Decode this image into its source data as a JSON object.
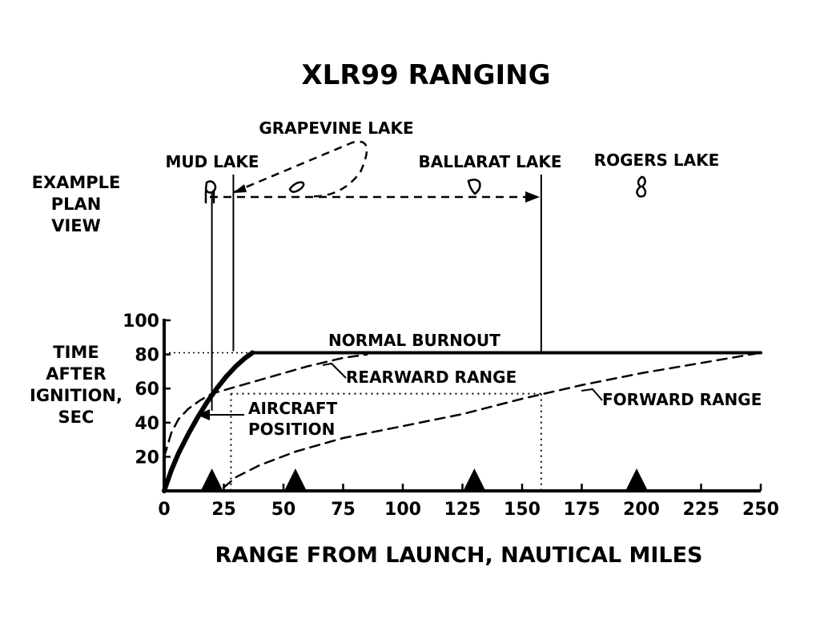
{
  "chart_data": {
    "type": "line",
    "title": "XLR99 RANGING",
    "xlabel": "RANGE FROM LAUNCH, NAUTICAL MILES",
    "ylabel": [
      "TIME",
      "AFTER",
      "IGNITION,",
      "SEC"
    ],
    "xlim": [
      0,
      250
    ],
    "ylim": [
      0,
      100
    ],
    "x_ticks": [
      "0",
      "25",
      "50",
      "75",
      "100",
      "125",
      "150",
      "175",
      "200",
      "225",
      "250"
    ],
    "y_ticks": [
      "20",
      "40",
      "60",
      "80",
      "100"
    ],
    "grid": false,
    "series": [
      {
        "name": "AIRCRAFT POSITION",
        "style": "solid-thick",
        "points": [
          [
            0,
            0
          ],
          [
            3,
            12
          ],
          [
            6,
            22
          ],
          [
            10,
            33
          ],
          [
            14,
            43
          ],
          [
            18,
            52
          ],
          [
            22,
            60
          ],
          [
            26,
            67
          ],
          [
            30,
            73
          ],
          [
            34,
            78
          ],
          [
            37,
            81
          ]
        ]
      },
      {
        "name": "NORMAL BURNOUT",
        "style": "solid",
        "points": [
          [
            37,
            81
          ],
          [
            250,
            81
          ]
        ]
      },
      {
        "name": "REARWARD RANGE",
        "style": "dashed",
        "points": [
          [
            0,
            20
          ],
          [
            3,
            34
          ],
          [
            6,
            42
          ],
          [
            10,
            48
          ],
          [
            15,
            53
          ],
          [
            20,
            57
          ],
          [
            30,
            61
          ],
          [
            45,
            67
          ],
          [
            60,
            73
          ],
          [
            75,
            78
          ],
          [
            85,
            80
          ]
        ]
      },
      {
        "name": "FORWARD RANGE",
        "style": "dashed",
        "points": [
          [
            25,
            2
          ],
          [
            30,
            8
          ],
          [
            40,
            15
          ],
          [
            55,
            23
          ],
          [
            75,
            31
          ],
          [
            100,
            38
          ],
          [
            125,
            45
          ],
          [
            150,
            54
          ],
          [
            175,
            62
          ],
          [
            200,
            69
          ],
          [
            225,
            75
          ],
          [
            250,
            81
          ]
        ]
      }
    ],
    "reference_lines": {
      "burnout_level": 81,
      "example_time": 57,
      "example_aircraft_range": 28,
      "example_forward_range": 158
    },
    "triangle_markers_x": [
      20,
      55,
      130,
      198
    ],
    "plan_view": {
      "label": [
        "EXAMPLE",
        "PLAN",
        "VIEW"
      ],
      "lakes": [
        "MUD LAKE",
        "GRAPEVINE LAKE",
        "BALLARAT LAKE",
        "ROGERS LAKE"
      ]
    }
  }
}
